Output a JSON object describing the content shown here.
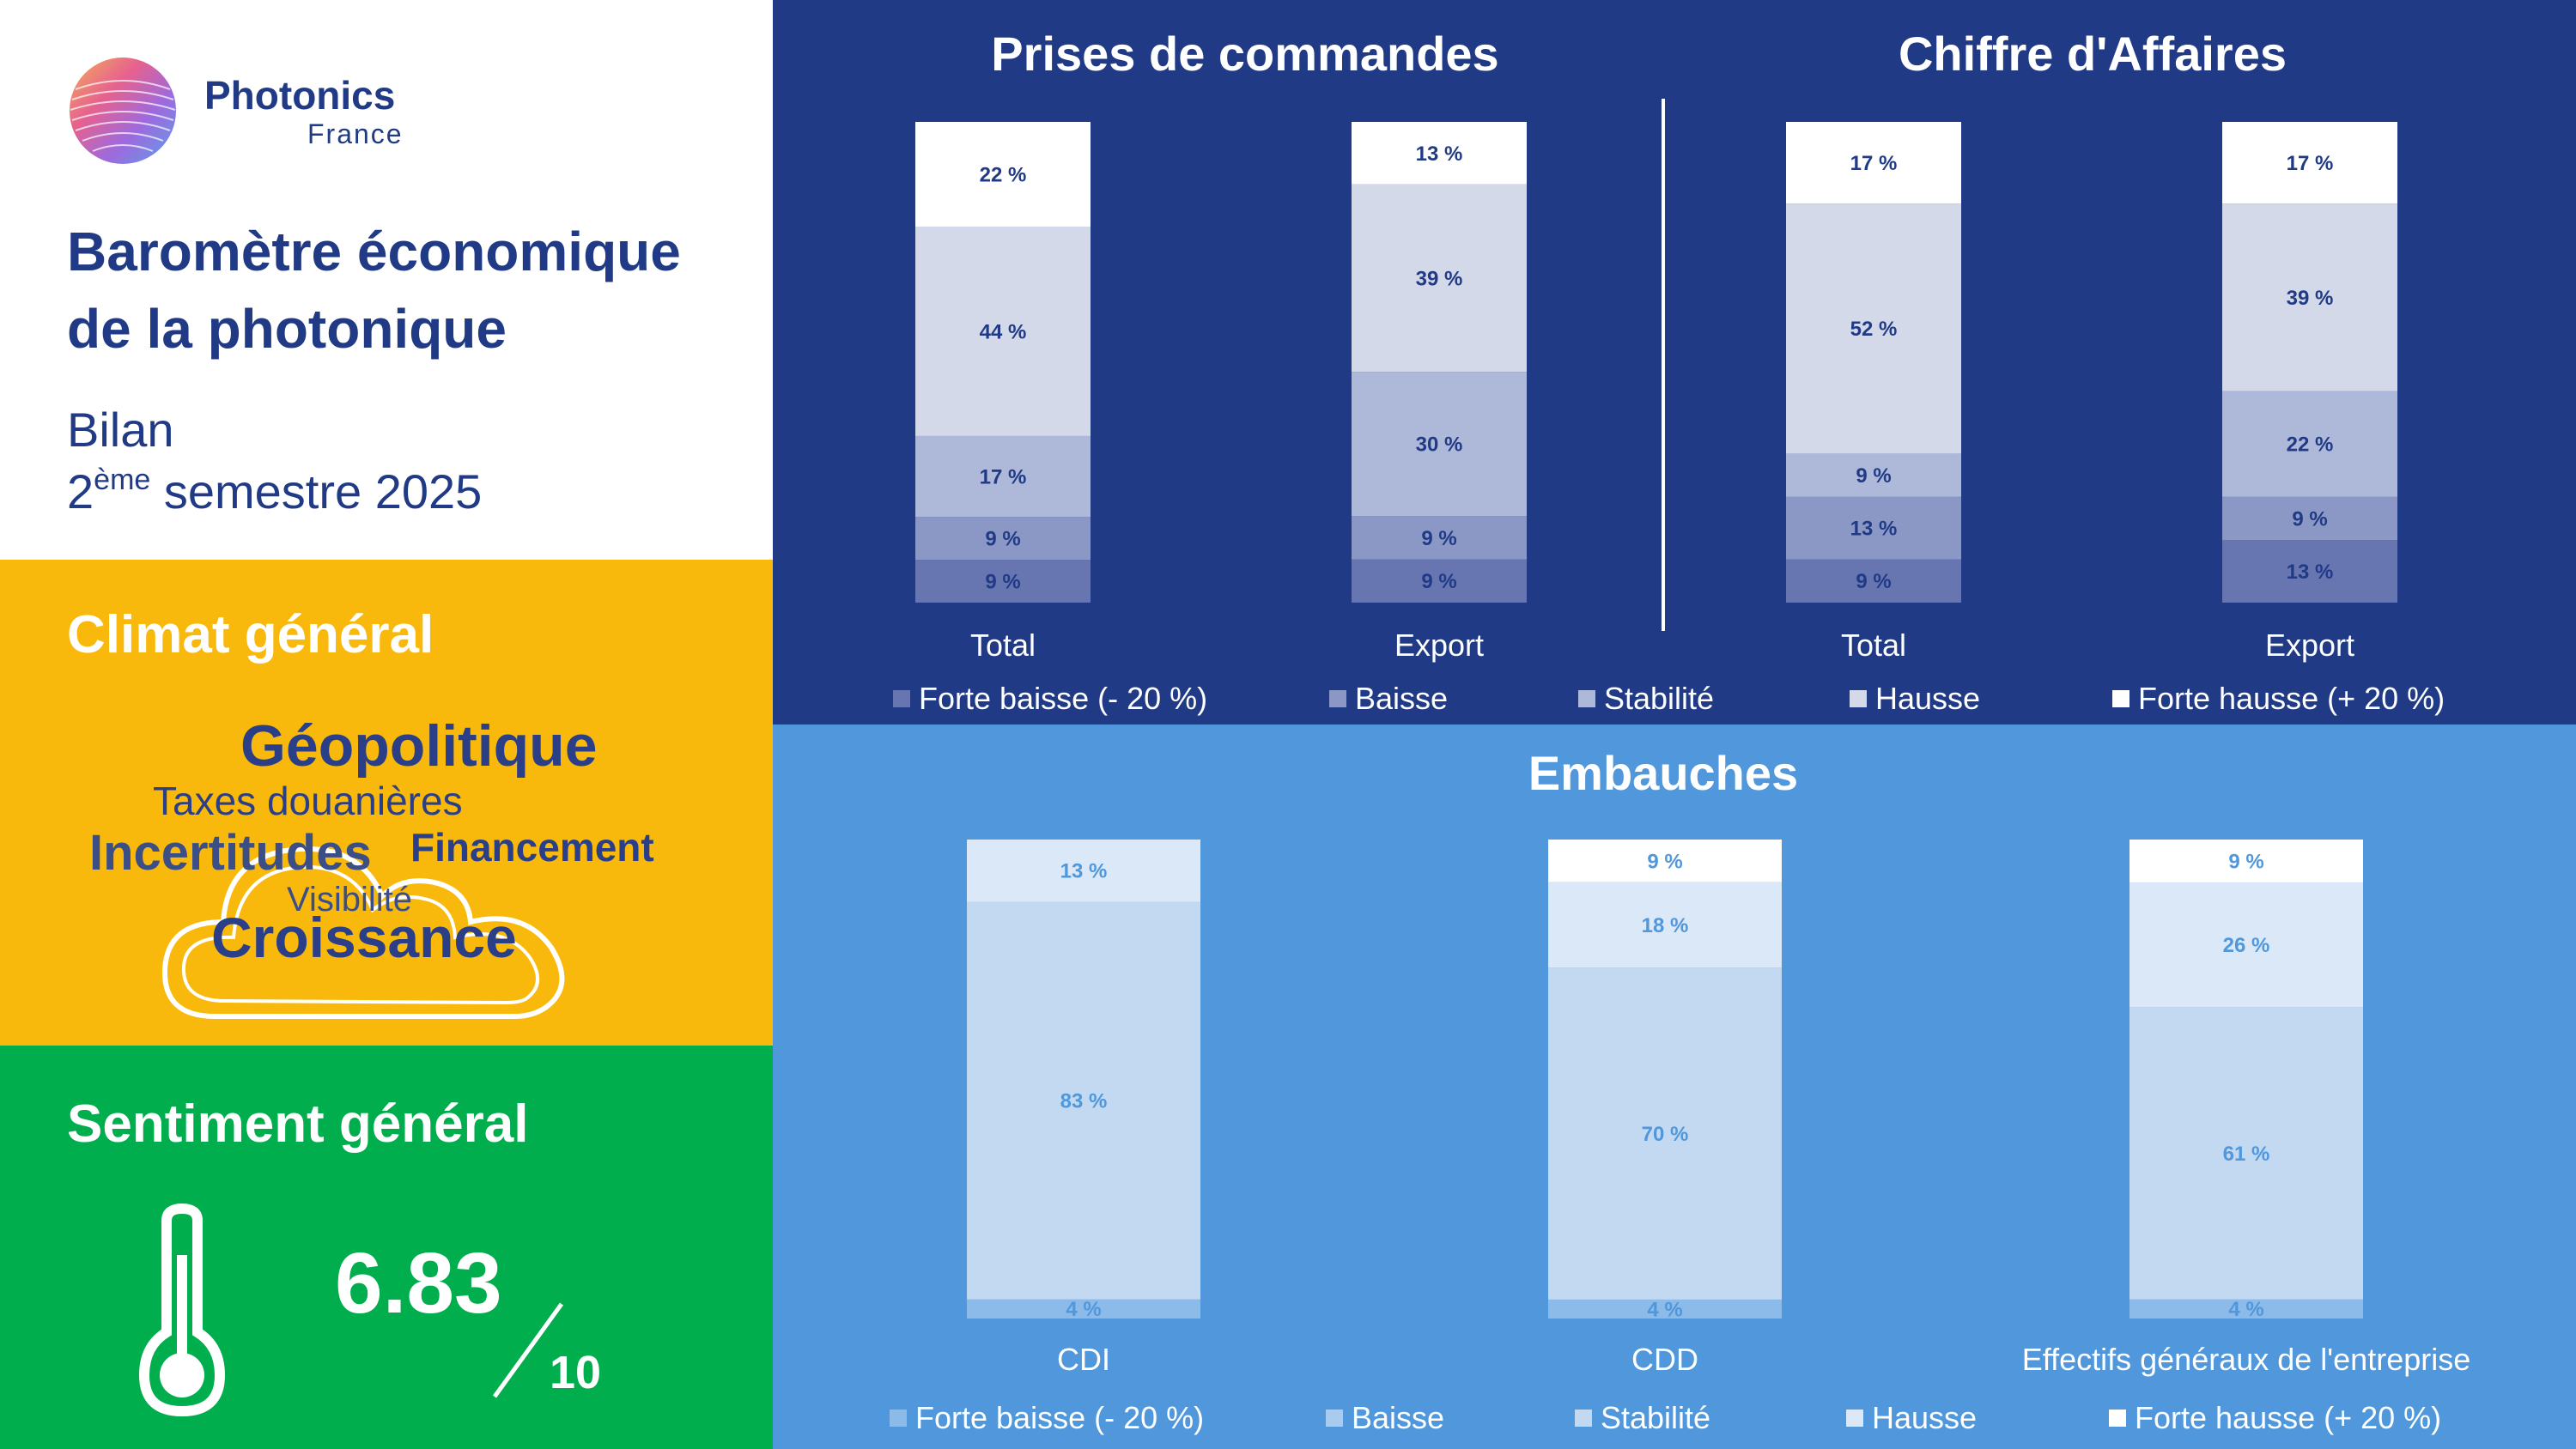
{
  "brand": {
    "logo_name": "Photonics",
    "logo_sub": "France",
    "title_line1": "Baromètre économique",
    "title_line2": "de la photonique",
    "report_line1": "Bilan",
    "report_ordinal": "2",
    "report_ordinal_suffix": "ème",
    "report_period": " semestre 2025"
  },
  "climat": {
    "title": "Climat général",
    "words": [
      {
        "text": "Géopolitique",
        "weight": 1
      },
      {
        "text": "Taxes douanières",
        "weight": 3
      },
      {
        "text": "Incertitudes",
        "weight": 2
      },
      {
        "text": "Financement",
        "weight": 3
      },
      {
        "text": "Visibilité",
        "weight": 4
      },
      {
        "text": "Croissance",
        "weight": 1
      }
    ]
  },
  "sentiment": {
    "title": "Sentiment  général",
    "score": "6.83",
    "scale": "10",
    "icon": "thermometer-icon"
  },
  "colors": {
    "top_bg": "#213a86",
    "bottom_bg": "#5097db",
    "top_series": [
      "#6775b1",
      "#8b98c5",
      "#aeb8d8",
      "#d3d9e8",
      "#ffffff"
    ],
    "bottom_series": [
      "#8cbbea",
      "#a9cbee",
      "#c3d9f1",
      "#dae8f7",
      "#ffffff"
    ],
    "top_label": "#213a86",
    "bottom_label": "#5097db"
  },
  "chart_data": [
    {
      "type": "bar",
      "stacked": true,
      "title": "Prises de commandes",
      "categories": [
        "Total",
        "Export"
      ],
      "series": [
        {
          "name": "Forte baisse (- 20 %)",
          "values": [
            9,
            9
          ]
        },
        {
          "name": "Baisse",
          "values": [
            9,
            9
          ]
        },
        {
          "name": "Stabilité",
          "values": [
            17,
            30
          ]
        },
        {
          "name": "Hausse",
          "values": [
            44,
            39
          ]
        },
        {
          "name": "Forte hausse (+ 20 %)",
          "values": [
            22,
            13
          ]
        }
      ],
      "unit": "%"
    },
    {
      "type": "bar",
      "stacked": true,
      "title": "Chiffre d'Affaires",
      "categories": [
        "Total",
        "Export"
      ],
      "series": [
        {
          "name": "Forte baisse (- 20 %)",
          "values": [
            9,
            13
          ]
        },
        {
          "name": "Baisse",
          "values": [
            13,
            9
          ]
        },
        {
          "name": "Stabilité",
          "values": [
            9,
            22
          ]
        },
        {
          "name": "Hausse",
          "values": [
            52,
            39
          ]
        },
        {
          "name": "Forte hausse (+ 20 %)",
          "values": [
            17,
            17
          ]
        }
      ],
      "unit": "%"
    },
    {
      "type": "bar",
      "stacked": true,
      "title": "Embauches",
      "categories": [
        "CDI",
        "CDD",
        "Effectifs généraux de l'entreprise"
      ],
      "series": [
        {
          "name": "Forte baisse (- 20 %)",
          "values": [
            4,
            4,
            4
          ]
        },
        {
          "name": "Baisse",
          "values": [
            0,
            0,
            0
          ]
        },
        {
          "name": "Stabilité",
          "values": [
            83,
            70,
            61
          ]
        },
        {
          "name": "Hausse",
          "values": [
            13,
            18,
            26
          ]
        },
        {
          "name": "Forte hausse (+ 20 %)",
          "values": [
            0,
            9,
            9
          ]
        }
      ],
      "unit": "%"
    }
  ]
}
